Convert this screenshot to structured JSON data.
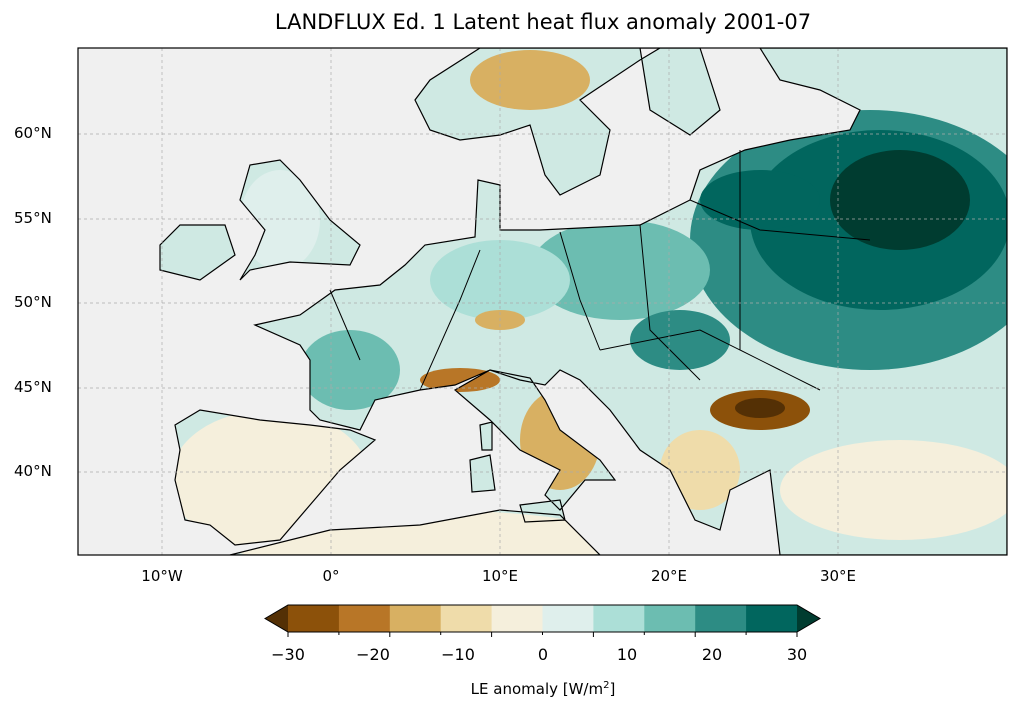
{
  "title": "LANDFLUX Ed. 1 Latent heat flux anomaly 2001-07",
  "map": {
    "extent_lon": [
      -15,
      40
    ],
    "extent_lat": [
      35,
      65
    ],
    "projection": "PlateCarree",
    "lat_labels": [
      "60°N",
      "55°N",
      "50°N",
      "45°N",
      "40°N"
    ],
    "lon_labels": [
      "10°W",
      "0°",
      "10°E",
      "20°E",
      "30°E"
    ],
    "sea_color": "#f0f0f0"
  },
  "colorbar": {
    "label": "LE anomaly [W/m",
    "label_sup": "2",
    "label_end": "]",
    "ticks": [
      "−30",
      "−20",
      "−10",
      "0",
      "10",
      "20",
      "30"
    ],
    "levels": [
      -30,
      -25,
      -20,
      -15,
      -10,
      -5,
      0,
      5,
      10,
      15,
      20,
      25,
      30
    ],
    "colors": [
      "#543005",
      "#8c510a",
      "#b87627",
      "#d8b062",
      "#efdcaa",
      "#f5efdc",
      "#dfefec",
      "#acdfd7",
      "#6cbdb1",
      "#2d8c84",
      "#01665e",
      "#003c30"
    ],
    "extend": "both"
  }
}
